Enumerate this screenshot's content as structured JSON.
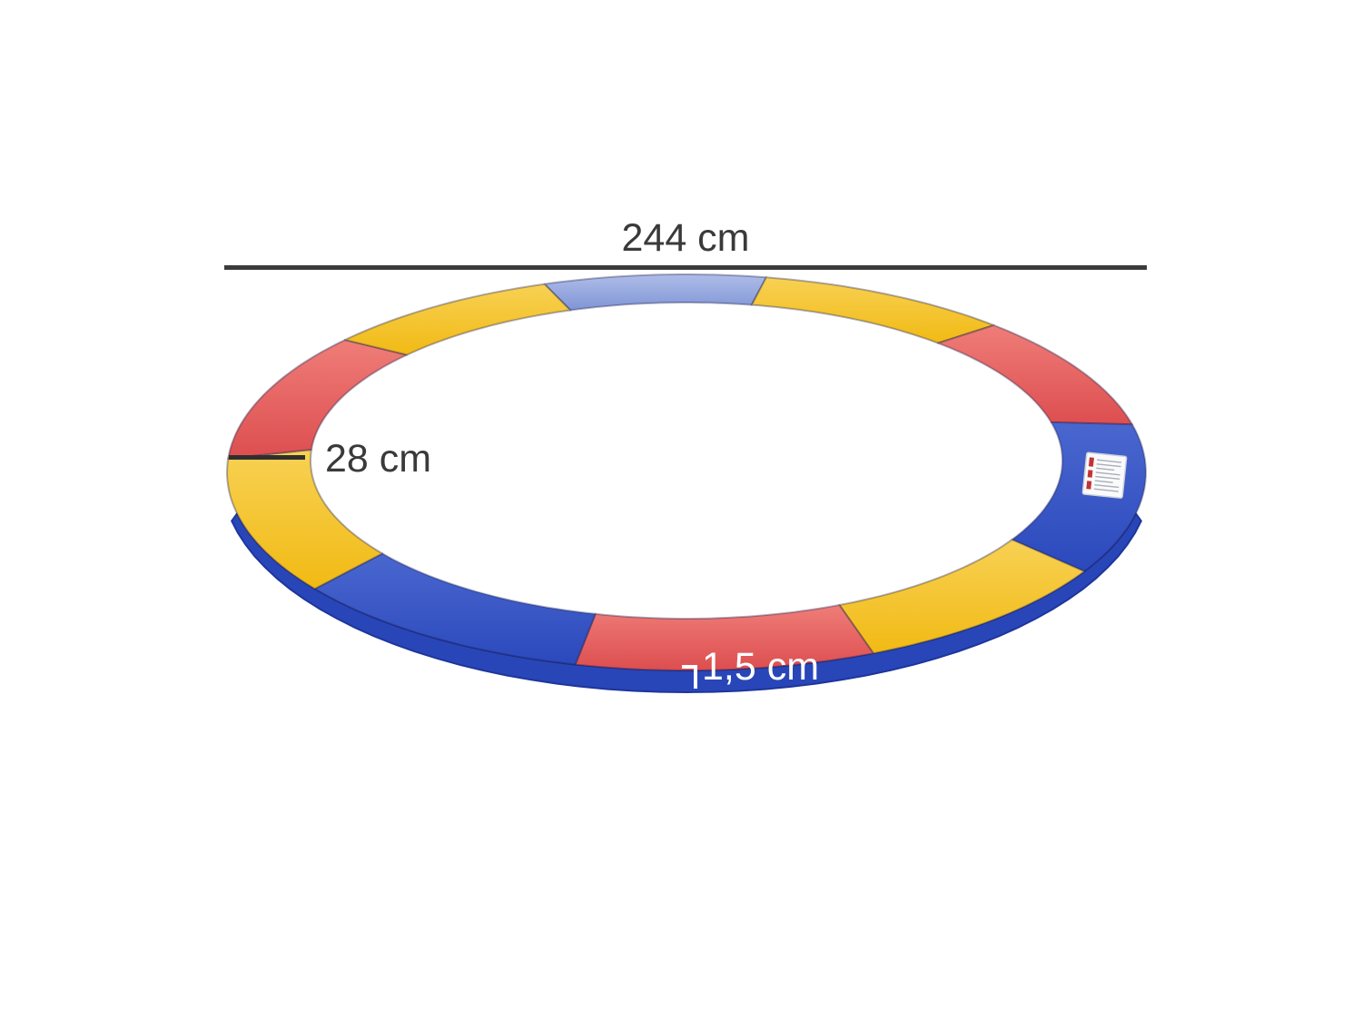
{
  "figure": {
    "kind": "product-dimension-diagram",
    "subject": "multicolor trampoline safety edge pad",
    "background": "#ffffff"
  },
  "annotations": {
    "diameter": {
      "label": "244 cm"
    },
    "pad_width": {
      "label": "28 cm"
    },
    "thickness": {
      "label": "1,5 cm"
    }
  },
  "colors": {
    "dimension_line": "#3b3b3b",
    "dimension_text": "#3a3a3a",
    "thickness_text": "#ffffff",
    "yellow_light": "#f8d154",
    "yellow": "#f1ba14",
    "red_light": "#ef7d78",
    "red": "#dd4e50",
    "blue_light": "#4a67cf",
    "blue": "#2b49bc",
    "periwinkle_light": "#aebde8",
    "periwinkle": "#8195d6",
    "skirt": "#2946b8",
    "skirt_edge": "#1d359c",
    "seam": "rgba(25,30,75,0.35)",
    "label_bg": "#fafafa",
    "label_border": "#cdd2da",
    "label_mark": "#c23333",
    "label_text_line": "#a7afbb"
  },
  "ring": {
    "segments": [
      {
        "name": "blue-top",
        "color": "lightblue",
        "t0": 252,
        "t1": 280
      },
      {
        "name": "yellow-top-right",
        "color": "yellow",
        "t0": 280,
        "t1": 312
      },
      {
        "name": "red-upper-right",
        "color": "red",
        "t0": 312,
        "t1": 346
      },
      {
        "name": "blue-label",
        "color": "blue",
        "t0": 346,
        "t1": 390
      },
      {
        "name": "yellow-right",
        "color": "yellow",
        "t0": 30,
        "t1": 66
      },
      {
        "name": "red-bottom",
        "color": "red",
        "t0": 66,
        "t1": 104
      },
      {
        "name": "blue-long",
        "color": "blue",
        "t0": 104,
        "t1": 144
      },
      {
        "name": "yellow-left",
        "color": "yellow",
        "t0": 144,
        "t1": 184
      },
      {
        "name": "red-upper-left",
        "color": "red",
        "t0": 184,
        "t1": 222
      },
      {
        "name": "yellow-top-left",
        "color": "yellow",
        "t0": 222,
        "t1": 252
      }
    ]
  },
  "product_label": {
    "name": "care-label"
  }
}
